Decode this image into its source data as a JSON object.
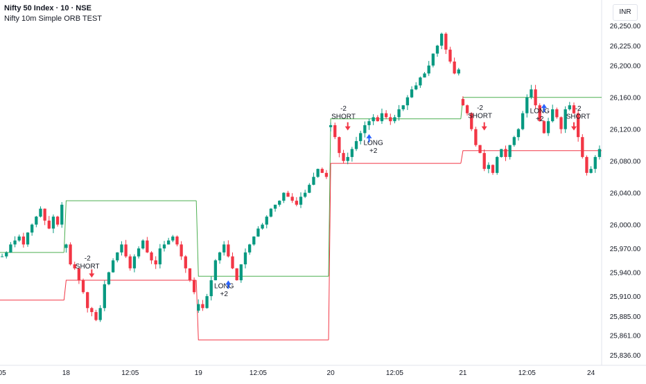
{
  "header": {
    "title": "Nifty 50 Index · 10 · NSE",
    "subtitle": "Nifty 10m Simple ORB TEST",
    "currency": "INR"
  },
  "colors": {
    "up": "#089981",
    "down": "#f23645",
    "orb_high": "#4caf50",
    "orb_low": "#f23645",
    "long_arrow": "#2962ff",
    "short_arrow": "#f23645"
  },
  "chart_data": {
    "type": "candlestick",
    "title": "Nifty 50 Index · 10 · NSE",
    "ylim": [
      25830,
      26265
    ],
    "y_ticks": [
      "26,250.00",
      "26,225.00",
      "26,200.00",
      "26,160.00",
      "26,120.00",
      "26,080.00",
      "26,040.00",
      "26,000.00",
      "25,970.00",
      "25,940.00",
      "25,910.00",
      "25,885.00",
      "25,861.00",
      "25,836.00"
    ],
    "x_ticks": [
      "05",
      "18",
      "12:05",
      "19",
      "12:05",
      "20",
      "12:05",
      "21",
      "12:05",
      "24"
    ],
    "y_tick_values": [
      26250,
      26225,
      26200,
      26160,
      26120,
      26080,
      26040,
      26000,
      25970,
      25940,
      25910,
      25885,
      25861,
      25836
    ],
    "sessions": [
      {
        "start": 0,
        "end": 14,
        "first_bar_ohlc": null,
        "orb_high": 25965,
        "orb_low": 25905
      },
      {
        "start": 15,
        "end": 45,
        "orb_high": 26030,
        "orb_low": 25930
      },
      {
        "start": 46,
        "end": 76,
        "orb_high": 25935,
        "orb_low": 25855
      },
      {
        "start": 77,
        "end": 107,
        "orb_high": 26133,
        "orb_low": 26077
      },
      {
        "start": 108,
        "end": 140,
        "orb_high": 26160,
        "orb_low": 26093
      }
    ],
    "candle_count": 141,
    "session_paths": [
      [
        25960,
        25965,
        25975,
        25980,
        25985,
        25975,
        25990,
        26000,
        26010,
        26020,
        26005,
        25995,
        26010,
        26000,
        26025
      ],
      [
        25975,
        25950,
        25945,
        25930,
        25915,
        25895,
        25890,
        25880,
        25895,
        25925,
        25940,
        25955,
        25965,
        25975,
        25960,
        25945,
        25960,
        25970,
        25980,
        25965,
        25955,
        25950,
        25970,
        25975,
        25980,
        25985,
        25975,
        25960,
        25945,
        25930,
        25915
      ],
      [
        25900,
        25895,
        25910,
        25930,
        25955,
        25965,
        25975,
        25960,
        25945,
        25930,
        25950,
        25965,
        25975,
        25985,
        25995,
        26000,
        26010,
        26020,
        26025,
        26030,
        26040,
        26035,
        26030,
        26025,
        26035,
        26040,
        26050,
        26060,
        26070,
        26065,
        26060
      ],
      [
        26125,
        26110,
        26090,
        26080,
        26085,
        26095,
        26105,
        26115,
        26125,
        26130,
        26135,
        26130,
        26140,
        26135,
        26130,
        26135,
        26145,
        26150,
        26160,
        26170,
        26175,
        26185,
        26190,
        26200,
        26215,
        26225,
        26240,
        26220,
        26205,
        26190,
        26195
      ],
      [
        26150,
        26140,
        26120,
        26100,
        26090,
        26070,
        26075,
        26065,
        26085,
        26095,
        26085,
        26100,
        26110,
        26120,
        26140,
        26160,
        26170,
        26150,
        26130,
        26115,
        26130,
        26145,
        26135,
        26120,
        26145,
        26150,
        26140,
        26110,
        26085,
        26065,
        26070,
        26085,
        26095
      ]
    ],
    "labels": [
      {
        "text": "-2",
        "bar": 20,
        "price": 25955,
        "arrow": "down"
      },
      {
        "text": "SHORT",
        "bar": 20,
        "price": 25945,
        "arrow": "down"
      },
      {
        "text": "LONG",
        "bar": 52,
        "price": 25920,
        "arrow": "up"
      },
      {
        "text": "+2",
        "bar": 52,
        "price": 25910,
        "arrow": "up"
      },
      {
        "text": "-2",
        "bar": 80,
        "price": 26143,
        "arrow": "down"
      },
      {
        "text": "SHORT",
        "bar": 80,
        "price": 26133,
        "arrow": "down"
      },
      {
        "text": "LONG",
        "bar": 87,
        "price": 26100,
        "arrow": "up"
      },
      {
        "text": "+2",
        "bar": 87,
        "price": 26090,
        "arrow": "up"
      },
      {
        "text": "-2",
        "bar": 112,
        "price": 26144,
        "arrow": "down"
      },
      {
        "text": "SHORT",
        "bar": 112,
        "price": 26134,
        "arrow": "down"
      },
      {
        "text": "LONG",
        "bar": 126,
        "price": 26140,
        "arrow": "up"
      },
      {
        "text": "+2",
        "bar": 126,
        "price": 26130,
        "arrow": "up"
      },
      {
        "text": "-2",
        "bar": 135,
        "price": 26143,
        "arrow": "down"
      },
      {
        "text": "SHORT",
        "bar": 135,
        "price": 26133,
        "arrow": "down"
      }
    ],
    "grid": false,
    "legend": "none"
  }
}
